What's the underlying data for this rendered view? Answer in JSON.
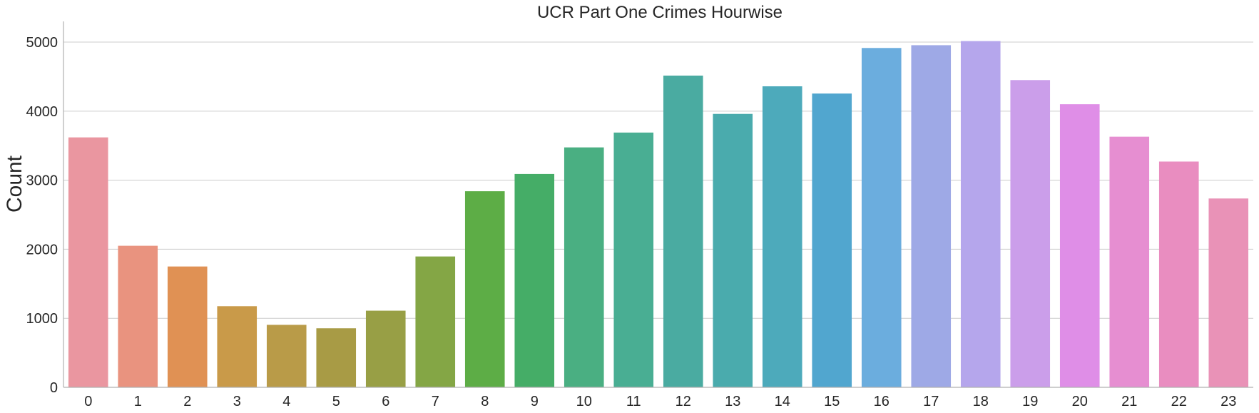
{
  "chart_data": {
    "type": "bar",
    "title": "UCR Part One Crimes Hourwise",
    "xlabel": "",
    "ylabel": "Count",
    "categories": [
      "0",
      "1",
      "2",
      "3",
      "4",
      "5",
      "6",
      "7",
      "8",
      "9",
      "10",
      "11",
      "12",
      "13",
      "14",
      "15",
      "16",
      "17",
      "18",
      "19",
      "20",
      "21",
      "22",
      "23"
    ],
    "values": [
      3620,
      2050,
      1750,
      1175,
      905,
      855,
      1110,
      1895,
      2840,
      3090,
      3475,
      3690,
      4515,
      3960,
      4360,
      4255,
      4915,
      4955,
      5015,
      4450,
      4100,
      3630,
      3270,
      2735
    ],
    "colors": [
      "#ea96a0",
      "#e9937f",
      "#e09154",
      "#c99a49",
      "#b99b48",
      "#a89b45",
      "#989f45",
      "#84a645",
      "#5dad46",
      "#45ad67",
      "#4aaf82",
      "#49ae93",
      "#4aaba1",
      "#4aabad",
      "#4daabb",
      "#51a6cf",
      "#6badde",
      "#9ea9e6",
      "#b5a6ec",
      "#cb9eea",
      "#df8ee7",
      "#e68ed1",
      "#e98dc0",
      "#e992b7"
    ],
    "ylim": [
      0,
      5300
    ],
    "yticks": [
      0,
      1000,
      2000,
      3000,
      4000,
      5000
    ],
    "grid": "horizontal",
    "legend": "none"
  }
}
